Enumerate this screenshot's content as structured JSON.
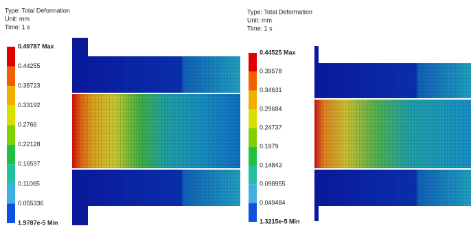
{
  "panels": [
    {
      "type": "Type: Total Deformation",
      "unit": "Unit: mm",
      "time": "Time: 1 s",
      "legend": [
        "0.49787 Max",
        "0.44255",
        "0.38723",
        "0.33192",
        "0.2766",
        "0.22128",
        "0.16597",
        "0.11065",
        "0.055336",
        "1.9787e-5 Min"
      ]
    },
    {
      "type": "Type: Total Deformation",
      "unit": "Unit: mm",
      "time": "Time: 1 s",
      "legend": [
        "0.44525 Max",
        "0.39578",
        "0.34631",
        "0.29684",
        "0.24737",
        "0.1979",
        "0.14843",
        "0.098955",
        "0.049484",
        "1.3215e-5 Min"
      ]
    }
  ]
}
